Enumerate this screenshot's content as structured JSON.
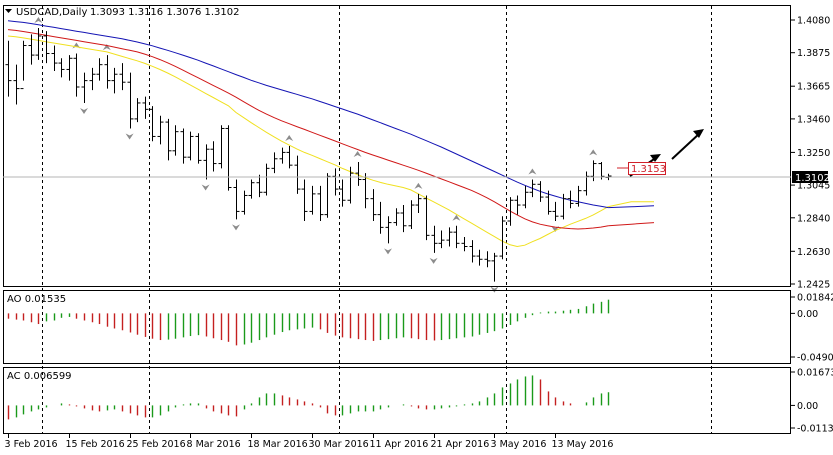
{
  "symbol_header": {
    "symbol": "USDCAD,Daily",
    "ohlc": "1.3093 1.3116 1.3076 1.3102",
    "menu_icon": "triangle-down-icon"
  },
  "current_price": "1.3102",
  "price_box_label": "1.3153",
  "colors": {
    "bull_bar": "#1a9a1a",
    "bear_bar": "#c42020",
    "ma_fast": "#f0e020",
    "ma_mid": "#d01818",
    "ma_slow": "#1414b4",
    "price_tag_bg": "#000000",
    "box_border": "#d0202a",
    "fractal": "#8c8c8c"
  },
  "chart_data": [
    {
      "type": "candlestick-ohlc",
      "title": "USDCAD,Daily",
      "y_ticks": [
        "1.4080",
        "1.3875",
        "1.3665",
        "1.3460",
        "1.3250",
        "1.3045",
        "1.2840",
        "1.2630",
        "1.2425"
      ],
      "ylim": [
        1.2425,
        1.408
      ],
      "x_ticks": [
        "3 Feb 2016",
        "15 Feb 2016",
        "25 Feb 2016",
        "8 Mar 2016",
        "18 Mar 2016",
        "30 Mar 2016",
        "11 Apr 2016",
        "21 Apr 2016",
        "3 May 2016",
        "13 May 2016"
      ],
      "grid": false,
      "series": [
        {
          "name": "OHLC",
          "points": [
            [
              1.38,
              1.395,
              1.36,
              1.37
            ],
            [
              1.37,
              1.38,
              1.355,
              1.365
            ],
            [
              1.365,
              1.395,
              1.37,
              1.392
            ],
            [
              1.392,
              1.399,
              1.38,
              1.386
            ],
            [
              1.386,
              1.403,
              1.383,
              1.398
            ],
            [
              1.398,
              1.401,
              1.381,
              1.387
            ],
            [
              1.387,
              1.392,
              1.376,
              1.381
            ],
            [
              1.381,
              1.384,
              1.372,
              1.377
            ],
            [
              1.377,
              1.386,
              1.37,
              1.384
            ],
            [
              1.384,
              1.387,
              1.36,
              1.366
            ],
            [
              1.366,
              1.375,
              1.356,
              1.37
            ],
            [
              1.37,
              1.378,
              1.364,
              1.374
            ],
            [
              1.374,
              1.384,
              1.37,
              1.38
            ],
            [
              1.38,
              1.386,
              1.365,
              1.37
            ],
            [
              1.37,
              1.378,
              1.362,
              1.374
            ],
            [
              1.374,
              1.381,
              1.364,
              1.369
            ],
            [
              1.369,
              1.375,
              1.34,
              1.346
            ],
            [
              1.346,
              1.359,
              1.344,
              1.356
            ],
            [
              1.356,
              1.36,
              1.346,
              1.352
            ],
            [
              1.352,
              1.354,
              1.332,
              1.335
            ],
            [
              1.335,
              1.348,
              1.33,
              1.344
            ],
            [
              1.344,
              1.346,
              1.32,
              1.326
            ],
            [
              1.326,
              1.342,
              1.323,
              1.338
            ],
            [
              1.338,
              1.34,
              1.318,
              1.322
            ],
            [
              1.322,
              1.338,
              1.32,
              1.335
            ],
            [
              1.335,
              1.337,
              1.318,
              1.32
            ],
            [
              1.32,
              1.33,
              1.308,
              1.327
            ],
            [
              1.327,
              1.332,
              1.313,
              1.318
            ],
            [
              1.318,
              1.342,
              1.315,
              1.34
            ],
            [
              1.34,
              1.342,
              1.301,
              1.303
            ],
            [
              1.303,
              1.308,
              1.283,
              1.288
            ],
            [
              1.288,
              1.301,
              1.286,
              1.298
            ],
            [
              1.298,
              1.308,
              1.296,
              1.306
            ],
            [
              1.306,
              1.311,
              1.297,
              1.3
            ],
            [
              1.3,
              1.318,
              1.298,
              1.315
            ],
            [
              1.315,
              1.325,
              1.312,
              1.321
            ],
            [
              1.321,
              1.328,
              1.318,
              1.325
            ],
            [
              1.325,
              1.329,
              1.315,
              1.317
            ],
            [
              1.317,
              1.323,
              1.299,
              1.302
            ],
            [
              1.302,
              1.308,
              1.282,
              1.288
            ],
            [
              1.288,
              1.304,
              1.286,
              1.299
            ],
            [
              1.299,
              1.304,
              1.282,
              1.286
            ],
            [
              1.286,
              1.312,
              1.284,
              1.31
            ],
            [
              1.31,
              1.315,
              1.298,
              1.302
            ],
            [
              1.302,
              1.308,
              1.291,
              1.295
            ],
            [
              1.295,
              1.316,
              1.293,
              1.312
            ],
            [
              1.312,
              1.319,
              1.304,
              1.308
            ],
            [
              1.308,
              1.312,
              1.29,
              1.296
            ],
            [
              1.296,
              1.302,
              1.282,
              1.286
            ],
            [
              1.286,
              1.294,
              1.274,
              1.278
            ],
            [
              1.278,
              1.285,
              1.268,
              1.281
            ],
            [
              1.281,
              1.29,
              1.279,
              1.287
            ],
            [
              1.287,
              1.292,
              1.275,
              1.279
            ],
            [
              1.279,
              1.295,
              1.277,
              1.292
            ],
            [
              1.292,
              1.299,
              1.287,
              1.296
            ],
            [
              1.296,
              1.298,
              1.27,
              1.273
            ],
            [
              1.273,
              1.279,
              1.262,
              1.268
            ],
            [
              1.268,
              1.276,
              1.265,
              1.27
            ],
            [
              1.27,
              1.278,
              1.266,
              1.275
            ],
            [
              1.275,
              1.279,
              1.265,
              1.268
            ],
            [
              1.268,
              1.272,
              1.263,
              1.266
            ],
            [
              1.266,
              1.27,
              1.256,
              1.26
            ],
            [
              1.26,
              1.264,
              1.254,
              1.258
            ],
            [
              1.258,
              1.263,
              1.253,
              1.257
            ],
            [
              1.257,
              1.262,
              1.244,
              1.26
            ],
            [
              1.26,
              1.285,
              1.258,
              1.282
            ],
            [
              1.282,
              1.297,
              1.279,
              1.295
            ],
            [
              1.295,
              1.298,
              1.286,
              1.292
            ],
            [
              1.292,
              1.304,
              1.29,
              1.3
            ],
            [
              1.3,
              1.308,
              1.297,
              1.305
            ],
            [
              1.305,
              1.307,
              1.294,
              1.297
            ],
            [
              1.297,
              1.301,
              1.286,
              1.288
            ],
            [
              1.288,
              1.294,
              1.282,
              1.285
            ],
            [
              1.285,
              1.299,
              1.283,
              1.296
            ],
            [
              1.296,
              1.301,
              1.29,
              1.293
            ],
            [
              1.293,
              1.304,
              1.291,
              1.301
            ],
            [
              1.301,
              1.313,
              1.298,
              1.31
            ],
            [
              1.31,
              1.32,
              1.307,
              1.318
            ],
            [
              1.318,
              1.319,
              1.308,
              1.31
            ],
            [
              1.3093,
              1.3116,
              1.3076,
              1.3102
            ]
          ]
        },
        {
          "name": "MA fast",
          "values": [
            1.398,
            1.3975,
            1.3968,
            1.396,
            1.3952,
            1.3944,
            1.3936,
            1.3928,
            1.392,
            1.3912,
            1.3904,
            1.3896,
            1.3888,
            1.388,
            1.3866,
            1.3852,
            1.3838,
            1.3824,
            1.3808,
            1.379,
            1.377,
            1.3748,
            1.3724,
            1.3698,
            1.3672,
            1.3646,
            1.362,
            1.3594,
            1.3568,
            1.3542,
            1.35,
            1.3468,
            1.3436,
            1.3406,
            1.3376,
            1.3348,
            1.332,
            1.3296,
            1.3272,
            1.325,
            1.3232,
            1.3212,
            1.3192,
            1.3172,
            1.315,
            1.313,
            1.311,
            1.3092,
            1.3076,
            1.3062,
            1.305,
            1.304,
            1.303,
            1.3015,
            1.299,
            1.2965,
            1.294,
            1.2915,
            1.289,
            1.2862,
            1.2834,
            1.2806,
            1.2778,
            1.275,
            1.2722,
            1.2694,
            1.2672,
            1.266,
            1.2668,
            1.269,
            1.271,
            1.2735,
            1.276,
            1.278,
            1.28,
            1.2818,
            1.2836,
            1.2858,
            1.2884,
            1.291
          ]
        },
        {
          "name": "MA mid",
          "values": [
            1.402,
            1.4015,
            1.4008,
            1.4,
            1.3992,
            1.3984,
            1.3976,
            1.3968,
            1.396,
            1.3952,
            1.3944,
            1.3936,
            1.3928,
            1.392,
            1.391,
            1.39,
            1.389,
            1.388,
            1.3866,
            1.385,
            1.3832,
            1.3812,
            1.379,
            1.3766,
            1.3742,
            1.3718,
            1.3694,
            1.367,
            1.3646,
            1.3622,
            1.3596,
            1.3568,
            1.354,
            1.3514,
            1.349,
            1.3468,
            1.3448,
            1.343,
            1.3412,
            1.3394,
            1.3376,
            1.3358,
            1.334,
            1.3322,
            1.3304,
            1.3286,
            1.3268,
            1.325,
            1.3234,
            1.3218,
            1.3202,
            1.3186,
            1.317,
            1.3154,
            1.3138,
            1.312,
            1.3102,
            1.3084,
            1.3066,
            1.3048,
            1.303,
            1.3012,
            1.299,
            1.2966,
            1.294,
            1.2912,
            1.2884,
            1.2858,
            1.2834,
            1.2814,
            1.28,
            1.279,
            1.2782,
            1.2776,
            1.2772,
            1.277,
            1.2772,
            1.2776,
            1.2782,
            1.279
          ]
        },
        {
          "name": "MA slow",
          "values": [
            1.4075,
            1.407,
            1.4065,
            1.4058,
            1.405,
            1.4042,
            1.4034,
            1.4026,
            1.4018,
            1.401,
            1.4002,
            1.3994,
            1.3986,
            1.3978,
            1.397,
            1.3962,
            1.3952,
            1.3942,
            1.393,
            1.3918,
            1.3904,
            1.389,
            1.3875,
            1.386,
            1.3844,
            1.3828,
            1.381,
            1.3792,
            1.3774,
            1.3756,
            1.3738,
            1.372,
            1.3702,
            1.3686,
            1.367,
            1.3656,
            1.3642,
            1.3628,
            1.3614,
            1.36,
            1.3586,
            1.357,
            1.3554,
            1.3538,
            1.3522,
            1.3506,
            1.349,
            1.3472,
            1.3454,
            1.3436,
            1.3418,
            1.34,
            1.3382,
            1.3364,
            1.3344,
            1.3324,
            1.3304,
            1.3284,
            1.3262,
            1.324,
            1.3218,
            1.3196,
            1.3174,
            1.3152,
            1.313,
            1.3108,
            1.3086,
            1.3064,
            1.3044,
            1.3024,
            1.3006,
            1.299,
            1.2976,
            1.2962,
            1.295,
            1.294,
            1.293,
            1.292,
            1.2912,
            1.2904
          ]
        }
      ]
    },
    {
      "type": "bar",
      "title": "AO 0.01535",
      "y_ticks": [
        "0.01842",
        "0.00",
        "-0.04908"
      ],
      "ylim": [
        -0.04908,
        0.01842
      ],
      "series": [
        {
          "name": "AO",
          "values": [
            -0.006,
            -0.007,
            -0.008,
            -0.01,
            -0.012,
            -0.009,
            -0.008,
            -0.005,
            -0.004,
            -0.006,
            -0.008,
            -0.01,
            -0.012,
            -0.015,
            -0.017,
            -0.019,
            -0.0215,
            -0.024,
            -0.0265,
            -0.0285,
            -0.03,
            -0.0295,
            -0.0285,
            -0.027,
            -0.0255,
            -0.0245,
            -0.026,
            -0.028,
            -0.03,
            -0.032,
            -0.036,
            -0.035,
            -0.033,
            -0.03,
            -0.027,
            -0.024,
            -0.021,
            -0.019,
            -0.018,
            -0.017,
            -0.016,
            -0.018,
            -0.022,
            -0.025,
            -0.027,
            -0.028,
            -0.029,
            -0.03,
            -0.031,
            -0.03,
            -0.029,
            -0.028,
            -0.027,
            -0.028,
            -0.029,
            -0.03,
            -0.0305,
            -0.03,
            -0.029,
            -0.028,
            -0.027,
            -0.026,
            -0.024,
            -0.022,
            -0.02,
            -0.017,
            -0.013,
            -0.009,
            -0.005,
            -0.002,
            0.001,
            0.002,
            0.002,
            0.003,
            0.004,
            0.005,
            0.008,
            0.011,
            0.013,
            0.0154
          ]
        }
      ]
    },
    {
      "type": "bar",
      "title": "AC 0.006599",
      "y_ticks": [
        "0.016732",
        "0.00",
        "-0.01131"
      ],
      "ylim": [
        -0.01131,
        0.016732
      ],
      "series": [
        {
          "name": "AC",
          "values": [
            -0.007,
            -0.006,
            -0.0045,
            -0.003,
            -0.002,
            -0.001,
            0.0,
            0.001,
            0.0005,
            -0.0005,
            -0.0015,
            -0.0025,
            -0.003,
            -0.0025,
            -0.002,
            -0.003,
            -0.004,
            -0.005,
            -0.006,
            -0.006,
            -0.005,
            -0.003,
            -0.001,
            0.0005,
            0.001,
            0.001,
            -0.0015,
            -0.003,
            -0.004,
            -0.005,
            -0.0055,
            -0.002,
            0.001,
            0.004,
            0.006,
            0.006,
            0.005,
            0.004,
            0.003,
            0.002,
            0.001,
            -0.001,
            -0.004,
            -0.005,
            -0.005,
            -0.004,
            -0.003,
            -0.003,
            -0.003,
            -0.002,
            -0.001,
            0.0,
            0.0005,
            -0.0005,
            -0.0015,
            -0.002,
            -0.002,
            -0.0015,
            -0.001,
            -0.0005,
            0.0005,
            0.001,
            0.002,
            0.004,
            0.006,
            0.009,
            0.011,
            0.013,
            0.0145,
            0.015,
            0.013,
            0.007,
            0.004,
            0.002,
            0.001,
            0.0,
            0.0015,
            0.004,
            0.006,
            0.0066
          ]
        }
      ]
    }
  ]
}
